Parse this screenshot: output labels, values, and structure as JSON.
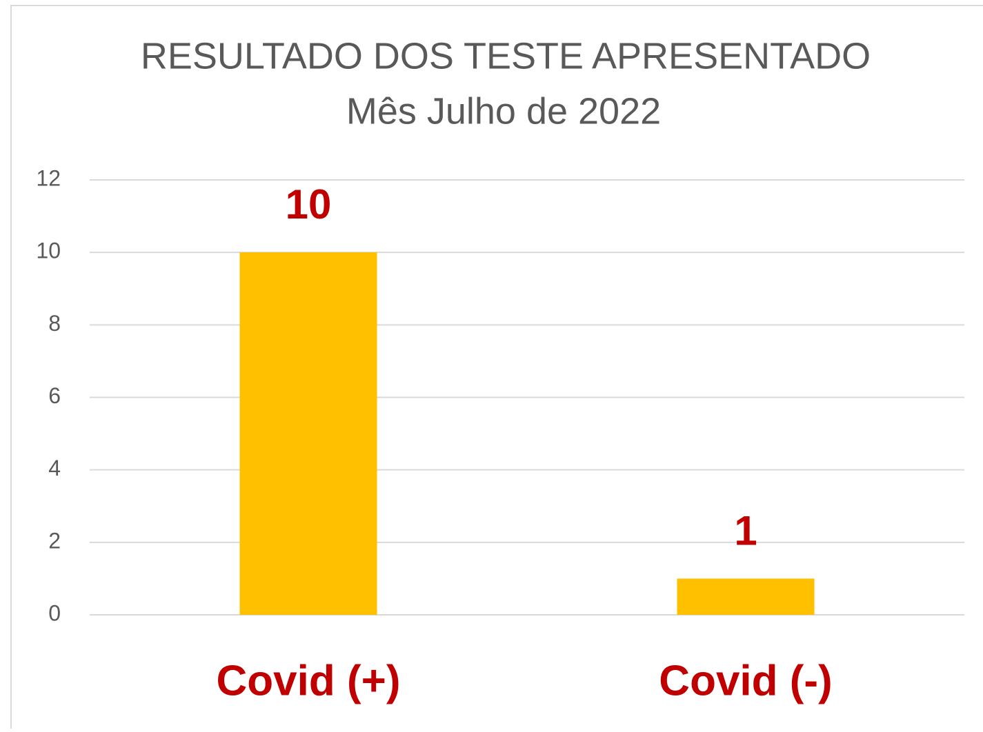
{
  "chart_data": {
    "type": "bar",
    "title": [
      "RESULTADO DOS TESTE APRESENTADO",
      "Mês Julho de 2022"
    ],
    "categories": [
      "Covid (+)",
      "Covid (-)"
    ],
    "values": [
      10,
      1
    ],
    "color": "#ffc000",
    "label_color": "#c00000",
    "ylim": [
      0,
      12
    ],
    "yticks": [
      0,
      2,
      4,
      6,
      8,
      10,
      12
    ],
    "grid": true
  }
}
